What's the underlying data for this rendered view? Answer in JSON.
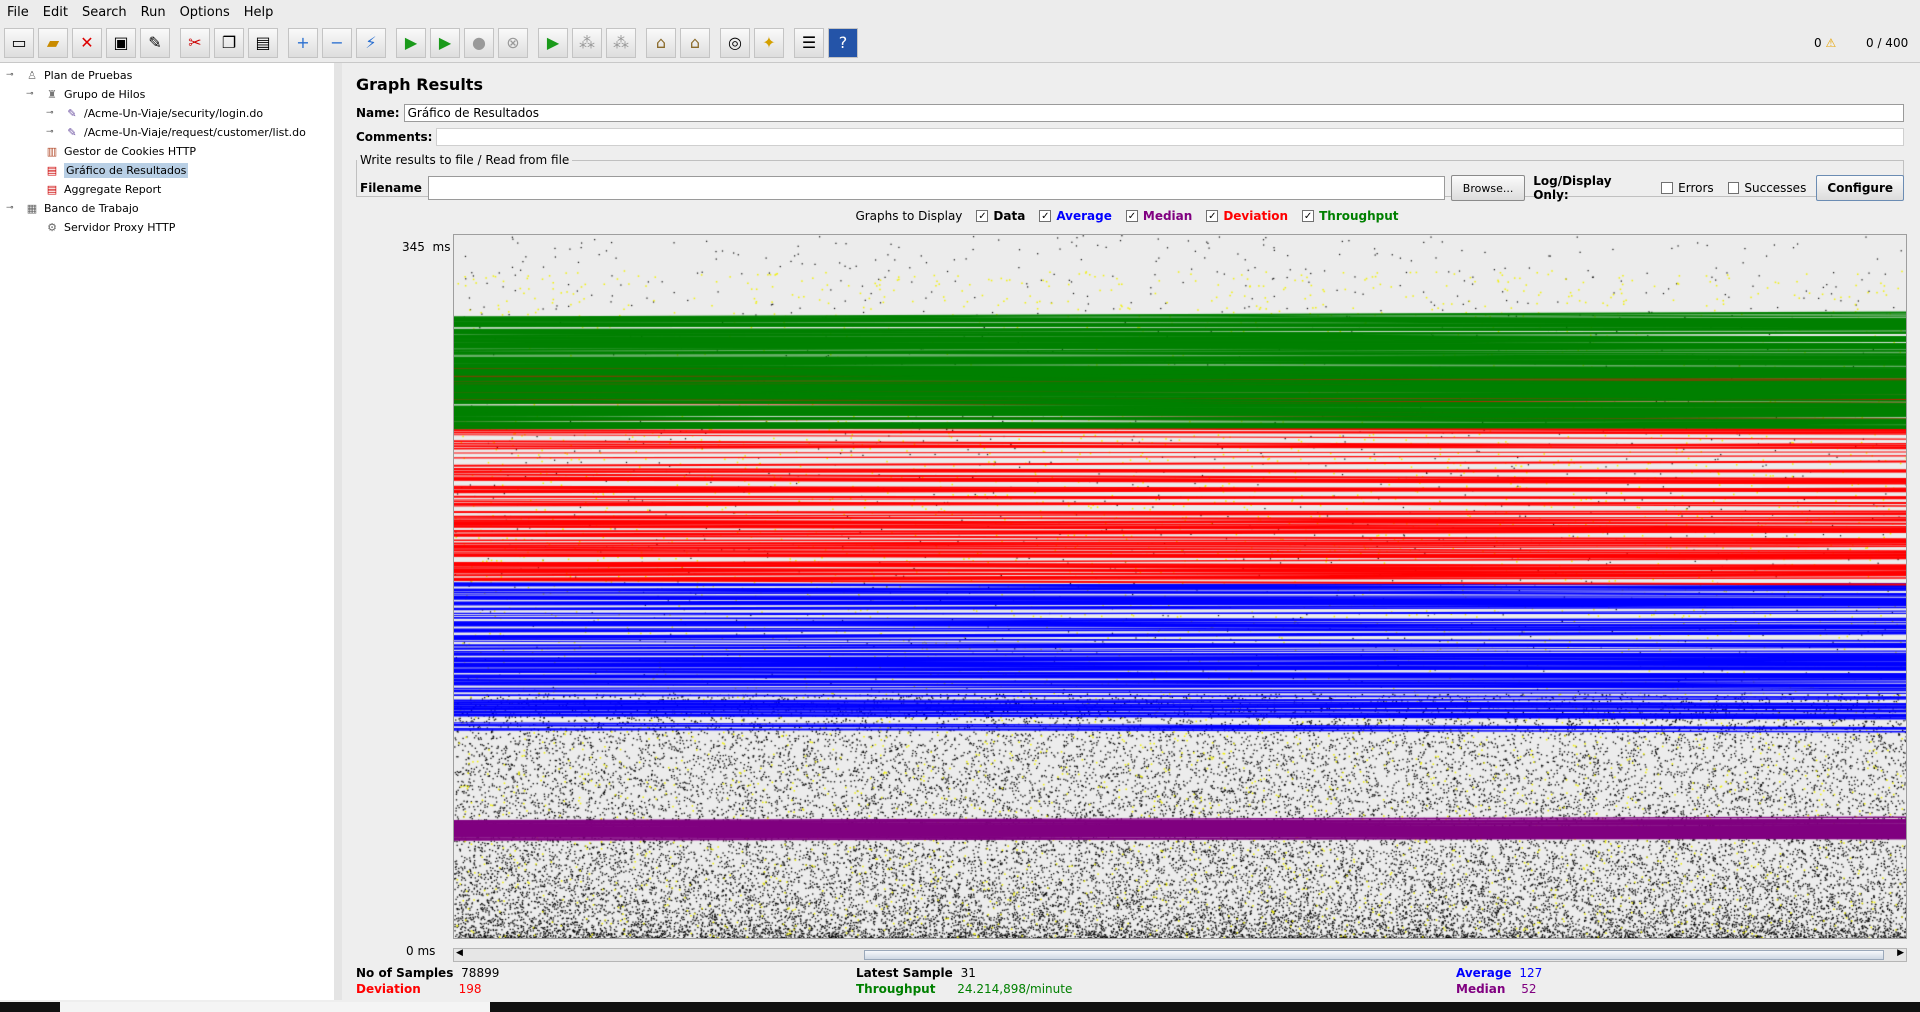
{
  "menu": [
    "File",
    "Edit",
    "Search",
    "Run",
    "Options",
    "Help"
  ],
  "toolbar": {
    "icons": [
      "new-icon",
      "open-icon",
      "close-icon",
      "save-icon",
      "save-as-icon",
      "cut-icon",
      "copy-icon",
      "paste-icon",
      "expand-icon",
      "collapse-icon",
      "toggle-icon",
      "start-icon",
      "start-no-pauses-icon",
      "stop-icon",
      "shutdown-icon",
      "remote-start-icon",
      "remote-stop-icon",
      "remote-shutdown-icon",
      "clear-icon",
      "clear-all-icon",
      "search-icon",
      "reset-search-icon",
      "function-helper-icon",
      "help-icon"
    ],
    "warning_count": "0",
    "threads": "0 / 400"
  },
  "tree": {
    "items": [
      {
        "label": "Plan de Pruebas",
        "level": 0,
        "icon": "test-plan-icon",
        "toggle": true
      },
      {
        "label": "Grupo de Hilos",
        "level": 1,
        "icon": "thread-group-icon",
        "toggle": true
      },
      {
        "label": "/Acme-Un-Viaje/security/login.do",
        "level": 2,
        "icon": "http-sampler-icon",
        "toggle": true
      },
      {
        "label": "/Acme-Un-Viaje/request/customer/list.do",
        "level": 2,
        "icon": "http-sampler-icon",
        "toggle": true
      },
      {
        "label": "Gestor de Cookies HTTP",
        "level": 1,
        "icon": "cookie-manager-icon",
        "toggle": false
      },
      {
        "label": "Gráfico de Resultados",
        "level": 1,
        "icon": "graph-results-icon",
        "toggle": false,
        "selected": true
      },
      {
        "label": "Aggregate Report",
        "level": 1,
        "icon": "aggregate-report-icon",
        "toggle": false
      },
      {
        "label": "Banco de Trabajo",
        "level": 0,
        "icon": "workbench-icon",
        "toggle": true
      },
      {
        "label": "Servidor Proxy HTTP",
        "level": 1,
        "icon": "proxy-server-icon",
        "toggle": false
      }
    ]
  },
  "panel": {
    "title": "Graph Results",
    "name_label": "Name:",
    "name_value": "Gráfico de Resultados",
    "comments_label": "Comments:",
    "file_legend": "Write results to file / Read from file",
    "filename_label": "Filename",
    "filename_value": "",
    "browse": "Browse...",
    "log_display": "Log/Display Only:",
    "errors": "Errors",
    "successes": "Successes",
    "configure": "Configure"
  },
  "graphs": {
    "label": "Graphs to Display",
    "items": [
      {
        "name": "Data",
        "color": "#000000",
        "checked": true
      },
      {
        "name": "Average",
        "color": "#0000ff",
        "checked": true
      },
      {
        "name": "Median",
        "color": "#800080",
        "checked": true
      },
      {
        "name": "Deviation",
        "color": "#ff0000",
        "checked": true
      },
      {
        "name": "Throughput",
        "color": "#008000",
        "checked": true
      }
    ]
  },
  "chart_data": {
    "type": "line",
    "ymax_label": "345  ms",
    "ymin_label": "0 ms",
    "ylim": [
      0,
      345
    ],
    "series": [
      {
        "name": "Throughput",
        "color": "#008000",
        "band": [
          250,
          305
        ]
      },
      {
        "name": "Deviation",
        "color": "#ff0000",
        "band": [
          175,
          280
        ]
      },
      {
        "name": "Average",
        "color": "#0000ff",
        "band": [
          100,
          175
        ]
      },
      {
        "name": "Median",
        "color": "#800080",
        "band": [
          48,
          58
        ]
      },
      {
        "name": "Data",
        "color": "#000000",
        "band": [
          0,
          120
        ]
      }
    ]
  },
  "stats": {
    "samples_label": "No of Samples",
    "samples": "78899",
    "latest_label": "Latest Sample",
    "latest": "31",
    "average_label": "Average",
    "average": "127",
    "deviation_label": "Deviation",
    "deviation": "198",
    "throughput_label": "Throughput",
    "throughput": "24.214,898/minute",
    "median_label": "Median",
    "median": "52"
  }
}
